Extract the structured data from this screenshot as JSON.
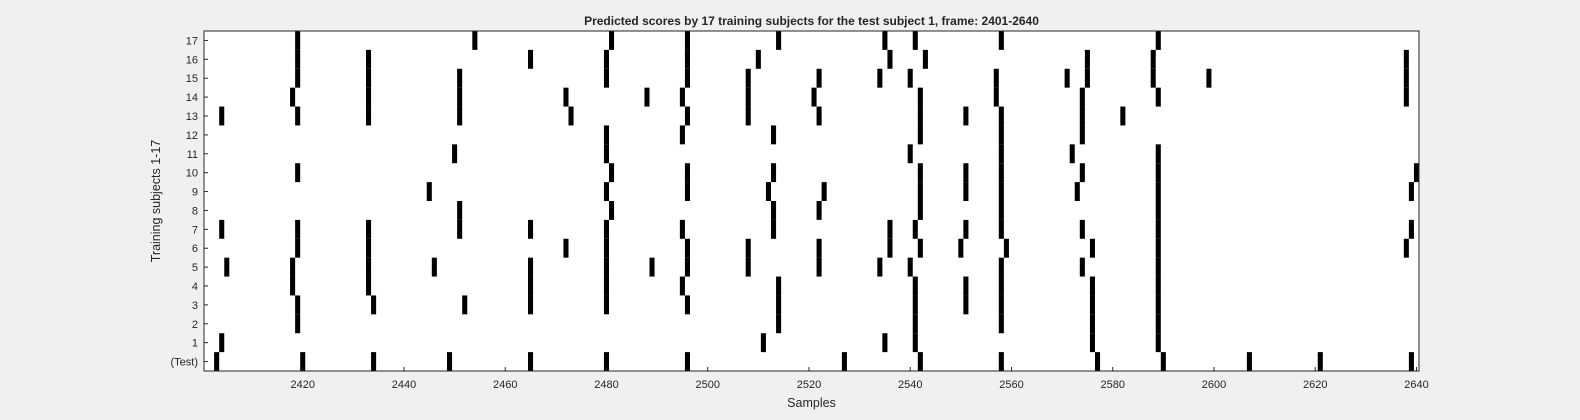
{
  "chart_data": {
    "type": "heatmap",
    "title": "Predicted scores by 17 training subjects for the test subject 1, frame: 2401-2640",
    "xlabel": "Samples",
    "ylabel": "Training subjects 1-17",
    "xlim": [
      2401,
      2640
    ],
    "x_ticks": [
      2420,
      2440,
      2460,
      2480,
      2500,
      2520,
      2540,
      2560,
      2580,
      2600,
      2620,
      2640
    ],
    "y_tick_labels": [
      "(Test)",
      "1",
      "2",
      "3",
      "4",
      "5",
      "6",
      "7",
      "8",
      "9",
      "10",
      "11",
      "12",
      "13",
      "14",
      "15",
      "16",
      "17"
    ],
    "mark_color": "#000000",
    "background_color": "#ffffff",
    "rows": [
      {
        "label": "(Test)",
        "events": [
          2403,
          2420,
          2434,
          2449,
          2465,
          2480,
          2496,
          2527,
          2542,
          2558,
          2577,
          2590,
          2607,
          2621,
          2639
        ]
      },
      {
        "label": "1",
        "events": [
          2404,
          2511,
          2535,
          2541,
          2576,
          2589
        ]
      },
      {
        "label": "2",
        "events": [
          2419,
          2514,
          2541,
          2558,
          2576,
          2589
        ]
      },
      {
        "label": "3",
        "events": [
          2419,
          2434,
          2452,
          2465,
          2480,
          2496,
          2514,
          2541,
          2551,
          2558,
          2576,
          2589
        ]
      },
      {
        "label": "4",
        "events": [
          2418,
          2433,
          2465,
          2480,
          2495,
          2514,
          2541,
          2551,
          2558,
          2576,
          2589
        ]
      },
      {
        "label": "5",
        "events": [
          2405,
          2418,
          2433,
          2446,
          2465,
          2480,
          2489,
          2496,
          2508,
          2522,
          2534,
          2540,
          2558,
          2574,
          2589
        ]
      },
      {
        "label": "6",
        "events": [
          2419,
          2433,
          2472,
          2480,
          2496,
          2508,
          2522,
          2536,
          2542,
          2550,
          2559,
          2576,
          2589,
          2638
        ]
      },
      {
        "label": "7",
        "events": [
          2404,
          2419,
          2433,
          2451,
          2465,
          2480,
          2495,
          2513,
          2536,
          2541,
          2551,
          2558,
          2574,
          2589,
          2639
        ]
      },
      {
        "label": "8",
        "events": [
          2451,
          2481,
          2513,
          2522,
          2542,
          2558,
          2589
        ]
      },
      {
        "label": "9",
        "events": [
          2445,
          2480,
          2496,
          2512,
          2523,
          2542,
          2551,
          2558,
          2573,
          2589,
          2639
        ]
      },
      {
        "label": "10",
        "events": [
          2419,
          2481,
          2496,
          2513,
          2542,
          2551,
          2558,
          2574,
          2589,
          2640
        ]
      },
      {
        "label": "11",
        "events": [
          2450,
          2480,
          2540,
          2558,
          2572,
          2589
        ]
      },
      {
        "label": "12",
        "events": [
          2480,
          2495,
          2513,
          2542,
          2558,
          2574
        ]
      },
      {
        "label": "13",
        "events": [
          2404,
          2419,
          2433,
          2451,
          2473,
          2496,
          2508,
          2522,
          2542,
          2551,
          2558,
          2574,
          2582
        ]
      },
      {
        "label": "14",
        "events": [
          2418,
          2433,
          2451,
          2472,
          2488,
          2495,
          2508,
          2521,
          2542,
          2557,
          2574,
          2589,
          2638
        ]
      },
      {
        "label": "15",
        "events": [
          2419,
          2433,
          2451,
          2480,
          2496,
          2508,
          2522,
          2534,
          2540,
          2557,
          2571,
          2575,
          2588,
          2599,
          2638
        ]
      },
      {
        "label": "16",
        "events": [
          2419,
          2433,
          2465,
          2480,
          2496,
          2510,
          2536,
          2543,
          2575,
          2588,
          2638
        ]
      },
      {
        "label": "17",
        "events": [
          2419,
          2454,
          2481,
          2496,
          2514,
          2535,
          2541,
          2558,
          2589
        ]
      }
    ]
  }
}
